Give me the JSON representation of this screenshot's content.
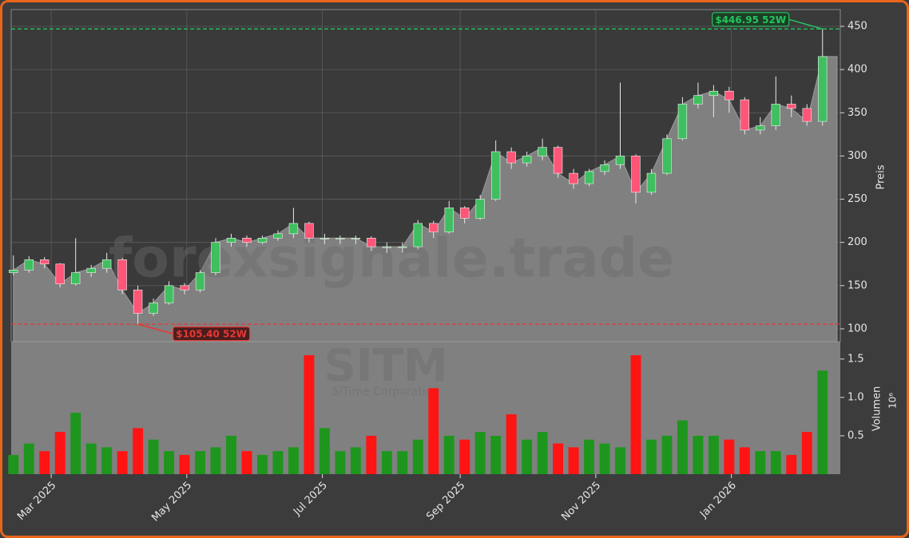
{
  "chart_data": {
    "type": "candlestick",
    "watermark": "forexsignale.trade",
    "symbol": "SITM",
    "company": "SiTime Corporation",
    "ylabel": "Preis",
    "volume_label": "Volumen",
    "volume_scale_label": "10⁶",
    "up_color": "#3fbf5f",
    "down_color": "#ff5577",
    "volume_up_color": "#1e961e",
    "volume_down_color": "#ff1414",
    "area_color": "#808080",
    "grid": true,
    "x": [
      "2025-02-12",
      "2025-02-19",
      "2025-02-26",
      "2025-03-05",
      "2025-03-12",
      "2025-03-19",
      "2025-03-26",
      "2025-04-02",
      "2025-04-09",
      "2025-04-16",
      "2025-04-23",
      "2025-04-30",
      "2025-05-07",
      "2025-05-14",
      "2025-05-21",
      "2025-05-28",
      "2025-06-04",
      "2025-06-11",
      "2025-06-18",
      "2025-06-25",
      "2025-07-02",
      "2025-07-09",
      "2025-07-16",
      "2025-07-23",
      "2025-07-30",
      "2025-08-06",
      "2025-08-13",
      "2025-08-20",
      "2025-08-27",
      "2025-09-03",
      "2025-09-10",
      "2025-09-17",
      "2025-09-24",
      "2025-10-01",
      "2025-10-08",
      "2025-10-15",
      "2025-10-22",
      "2025-10-29",
      "2025-11-05",
      "2025-11-12",
      "2025-11-19",
      "2025-11-26",
      "2025-12-03",
      "2025-12-10",
      "2025-12-17",
      "2025-12-24",
      "2025-12-31",
      "2026-01-07",
      "2026-01-14",
      "2026-01-21",
      "2026-01-28",
      "2026-02-04",
      "2026-02-11"
    ],
    "open": [
      165,
      168,
      180,
      175,
      152,
      165,
      170,
      180,
      145,
      118,
      130,
      150,
      145,
      165,
      200,
      205,
      200,
      205,
      210,
      222,
      205,
      205,
      205,
      205,
      195,
      195,
      195,
      222,
      212,
      240,
      228,
      250,
      305,
      292,
      300,
      310,
      280,
      268,
      282,
      290,
      300,
      258,
      280,
      320,
      360,
      370,
      375,
      365,
      330,
      335,
      360,
      355,
      340
    ],
    "high": [
      185,
      184,
      183,
      176,
      205,
      174,
      188,
      182,
      150,
      135,
      155,
      153,
      168,
      205,
      210,
      208,
      208,
      214,
      240,
      224,
      210,
      208,
      208,
      207,
      200,
      200,
      226,
      225,
      248,
      242,
      255,
      318,
      310,
      305,
      320,
      312,
      285,
      285,
      295,
      385,
      302,
      285,
      325,
      368,
      385,
      382,
      380,
      368,
      345,
      392,
      370,
      360,
      446.95
    ],
    "low": [
      162,
      165,
      170,
      148,
      150,
      160,
      165,
      140,
      105.4,
      115,
      128,
      140,
      142,
      162,
      195,
      195,
      198,
      202,
      205,
      200,
      198,
      198,
      198,
      190,
      188,
      188,
      192,
      205,
      210,
      222,
      226,
      248,
      285,
      288,
      295,
      275,
      262,
      265,
      278,
      285,
      245,
      255,
      278,
      318,
      355,
      345,
      350,
      325,
      325,
      330,
      345,
      335,
      335
    ],
    "close": [
      168,
      180,
      175,
      152,
      165,
      170,
      180,
      145,
      118,
      130,
      150,
      145,
      165,
      200,
      205,
      200,
      205,
      210,
      222,
      205,
      205,
      205,
      205,
      195,
      195,
      195,
      222,
      212,
      240,
      228,
      250,
      305,
      292,
      300,
      310,
      280,
      268,
      282,
      290,
      300,
      258,
      280,
      320,
      360,
      370,
      375,
      365,
      330,
      335,
      360,
      355,
      340,
      415
    ],
    "volume": [
      0.25,
      0.4,
      0.3,
      0.55,
      0.8,
      0.4,
      0.35,
      0.3,
      0.6,
      0.45,
      0.3,
      0.25,
      0.3,
      0.35,
      0.5,
      0.3,
      0.25,
      0.3,
      0.35,
      1.55,
      0.6,
      0.3,
      0.35,
      0.5,
      0.3,
      0.3,
      0.45,
      1.12,
      0.5,
      0.45,
      0.55,
      0.5,
      0.78,
      0.45,
      0.55,
      0.4,
      0.35,
      0.45,
      0.4,
      0.35,
      1.55,
      0.45,
      0.5,
      0.7,
      0.5,
      0.5,
      0.45,
      0.35,
      0.3,
      0.3,
      0.25,
      0.55,
      1.35
    ],
    "xlim": [
      "2025-02-11",
      "2026-02-19"
    ],
    "xticks": [
      {
        "value": "2025-03-01",
        "label": "Mar 2025"
      },
      {
        "value": "2025-05-01",
        "label": "May 2025"
      },
      {
        "value": "2025-07-01",
        "label": "Jul 2025"
      },
      {
        "value": "2025-09-01",
        "label": "Sep 2025"
      },
      {
        "value": "2025-11-01",
        "label": "Nov 2025"
      },
      {
        "value": "2026-01-01",
        "label": "Jan 2026"
      }
    ],
    "ylim": [
      85.2,
      469.4
    ],
    "yticks": [
      100,
      150,
      200,
      250,
      300,
      350,
      400,
      450
    ],
    "volume_ylim": [
      0,
      1.727
    ],
    "volume_yticks": [
      0.5,
      {
        "value": 1,
        "label": "1.0"
      },
      1.5
    ],
    "annotations": [
      {
        "text": "$446.95 52W",
        "value": 446.95,
        "color": "#22c55e"
      },
      {
        "text": "$105.40 52W",
        "value": 105.4,
        "color": "#e53935"
      }
    ]
  }
}
